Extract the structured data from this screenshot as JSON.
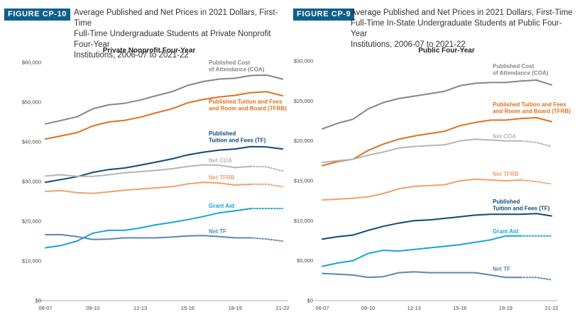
{
  "colors": {
    "badge": "#0d5f8c",
    "gray_dark": "#858585",
    "gray_light": "#b5b5b5",
    "orange_dark": "#e07020",
    "orange_light": "#f0a06a",
    "navy": "#0d4a78",
    "cyan": "#1aa3d8",
    "steel": "#5a88b0"
  },
  "figures": [
    {
      "badge": "FIGURE CP-10",
      "title_lines": [
        "Average Published and Net Prices in 2021 Dollars, First-Time",
        "Full-Time Undergraduate Students at Private Nonprofit Four-Year",
        "Institutions, 2006-07 to 2021-22"
      ]
    },
    {
      "badge": "FIGURE CP-9",
      "title_lines": [
        "Average Published and Net Prices in 2021 Dollars, First-Time",
        "Full-Time In-State Undergraduate Students at Public Four-Year",
        "Institutions, 2006-07 to 2021-22"
      ]
    }
  ],
  "chart_data": [
    {
      "type": "line",
      "title": "Private Nonprofit Four-Year",
      "xlabel": "",
      "ylabel": "",
      "x": [
        "06-07",
        "07-08",
        "08-09",
        "09-10",
        "10-11",
        "11-12",
        "12-13",
        "13-14",
        "14-15",
        "15-16",
        "16-17",
        "17-18",
        "18-19",
        "19-20",
        "20-21",
        "21-22"
      ],
      "x_tick_labels": [
        "06-07",
        "09-10",
        "12-13",
        "15-16",
        "18-19",
        "21-22"
      ],
      "ylim": [
        0,
        60000
      ],
      "y_ticks": [
        0,
        10000,
        20000,
        30000,
        40000,
        50000,
        60000
      ],
      "y_tick_labels": [
        "$0",
        "$10,000",
        "$20,000",
        "$30,000",
        "$40,000",
        "$50,000",
        "$60,000"
      ],
      "grid": false,
      "series": [
        {
          "name": "Published Cost of Attendance (COA)",
          "label_lines": [
            "Published Cost",
            "of Attendance (COA)"
          ],
          "color": "#858585",
          "values": [
            44500,
            45400,
            46300,
            48300,
            49300,
            49700,
            50500,
            51600,
            52600,
            54200,
            55200,
            55800,
            56000,
            56700,
            56800,
            55800
          ],
          "dotted_from": null
        },
        {
          "name": "Published Tuition and Fees and Room and Board (TFRB)",
          "label_lines": [
            "Published Tuition and Fees",
            "and Room and Board (TFRB)"
          ],
          "color": "#e07020",
          "values": [
            40700,
            41500,
            42300,
            44000,
            45000,
            45400,
            46200,
            47300,
            48300,
            49800,
            50700,
            51300,
            51700,
            52400,
            52600,
            51600
          ],
          "dotted_from": null
        },
        {
          "name": "Published Tuition and Fees (TF)",
          "label_lines": [
            "Published",
            "Tuition and Fees (TF)"
          ],
          "color": "#0d4a78",
          "values": [
            29800,
            30500,
            31200,
            32300,
            33000,
            33400,
            34100,
            34900,
            35700,
            36700,
            37400,
            37900,
            38200,
            38800,
            38700,
            38200
          ],
          "dotted_from": null
        },
        {
          "name": "Net COA",
          "label_lines": [
            "Net COA"
          ],
          "color": "#b5b5b5",
          "values": [
            31400,
            31700,
            31300,
            31300,
            31700,
            32200,
            32500,
            32800,
            33200,
            33800,
            34200,
            34100,
            33500,
            33800,
            33700,
            32600
          ],
          "dotted_from": 13
        },
        {
          "name": "Net TFRB",
          "label_lines": [
            "Net TFRB"
          ],
          "color": "#f0a06a",
          "values": [
            27500,
            27700,
            27200,
            27000,
            27400,
            27800,
            28100,
            28400,
            28700,
            29400,
            29800,
            29600,
            29100,
            29300,
            29300,
            28700
          ],
          "dotted_from": 13
        },
        {
          "name": "Grant Aid",
          "label_lines": [
            "Grant Aid"
          ],
          "color": "#1aa3d8",
          "values": [
            13300,
            13900,
            15000,
            17000,
            17700,
            17700,
            18300,
            19100,
            19700,
            20400,
            21200,
            22100,
            22600,
            23200,
            23200,
            23200
          ],
          "dotted_from": 13
        },
        {
          "name": "Net TF",
          "label_lines": [
            "Net TF"
          ],
          "color": "#5a88b0",
          "values": [
            16600,
            16600,
            16100,
            15400,
            15500,
            15800,
            15800,
            15800,
            16000,
            16300,
            16400,
            16100,
            15800,
            15800,
            15500,
            15000
          ],
          "dotted_from": 13
        }
      ]
    },
    {
      "type": "line",
      "title": "Public Four-Year",
      "xlabel": "",
      "ylabel": "",
      "x": [
        "06-07",
        "07-08",
        "08-09",
        "09-10",
        "10-11",
        "11-12",
        "12-13",
        "13-14",
        "14-15",
        "15-16",
        "16-17",
        "17-18",
        "18-19",
        "19-20",
        "20-21",
        "21-22"
      ],
      "x_tick_labels": [
        "06-07",
        "09-10",
        "12-13",
        "15-16",
        "18-19",
        "21-22"
      ],
      "ylim": [
        0,
        30000
      ],
      "y_ticks": [
        0,
        5000,
        10000,
        15000,
        20000,
        25000,
        30000
      ],
      "y_tick_labels": [
        "$0",
        "$5,000",
        "$10,000",
        "$15,000",
        "$20,000",
        "$25,000",
        "$30,000"
      ],
      "grid": false,
      "series": [
        {
          "name": "Published Cost of Attendance (COA)",
          "label_lines": [
            "Published Cost",
            "of Attendance (COA)"
          ],
          "color": "#858585",
          "values": [
            21500,
            22200,
            22700,
            24000,
            24800,
            25300,
            25600,
            25900,
            26200,
            26900,
            27200,
            27300,
            27300,
            27500,
            27600,
            27000
          ],
          "dotted_from": null
        },
        {
          "name": "Published Tuition and Fees and Room and Board (TFRB)",
          "label_lines": [
            "Published Tuition and Fees",
            "and Room and Board (TFRB)"
          ],
          "color": "#e07020",
          "values": [
            16900,
            17400,
            17700,
            18800,
            19600,
            20200,
            20600,
            20900,
            21200,
            21900,
            22300,
            22600,
            22600,
            22800,
            22900,
            22400
          ],
          "dotted_from": null
        },
        {
          "name": "Net COA",
          "label_lines": [
            "Net COA"
          ],
          "color": "#b5b5b5",
          "values": [
            17300,
            17500,
            17700,
            18200,
            18600,
            19100,
            19300,
            19400,
            19500,
            20000,
            20200,
            20100,
            20000,
            20000,
            19800,
            19300
          ],
          "dotted_from": 13
        },
        {
          "name": "Net TFRB",
          "label_lines": [
            "Net TFRB"
          ],
          "color": "#f0a06a",
          "values": [
            12600,
            12700,
            12800,
            13000,
            13400,
            14000,
            14300,
            14400,
            14500,
            15000,
            15200,
            15100,
            15000,
            15100,
            14900,
            14600
          ],
          "dotted_from": 13
        },
        {
          "name": "Published Tuition and Fees (TF)",
          "label_lines": [
            "Published",
            "Tuition and Fees (TF)"
          ],
          "color": "#0d4a78",
          "values": [
            7700,
            8000,
            8200,
            8800,
            9300,
            9700,
            10000,
            10100,
            10300,
            10500,
            10700,
            10800,
            10800,
            10800,
            10900,
            10600
          ],
          "dotted_from": null
        },
        {
          "name": "Grant Aid",
          "label_lines": [
            "Grant Aid"
          ],
          "color": "#1aa3d8",
          "values": [
            4300,
            4700,
            5000,
            5900,
            6300,
            6200,
            6400,
            6600,
            6800,
            7000,
            7300,
            7600,
            8100,
            8100,
            8100,
            8100
          ],
          "dotted_from": 13
        },
        {
          "name": "Net TF",
          "label_lines": [
            "Net TF"
          ],
          "color": "#5a88b0",
          "values": [
            3400,
            3300,
            3200,
            2900,
            3000,
            3500,
            3600,
            3500,
            3500,
            3500,
            3500,
            3200,
            2900,
            2900,
            2900,
            2600
          ],
          "dotted_from": 13
        }
      ]
    }
  ]
}
